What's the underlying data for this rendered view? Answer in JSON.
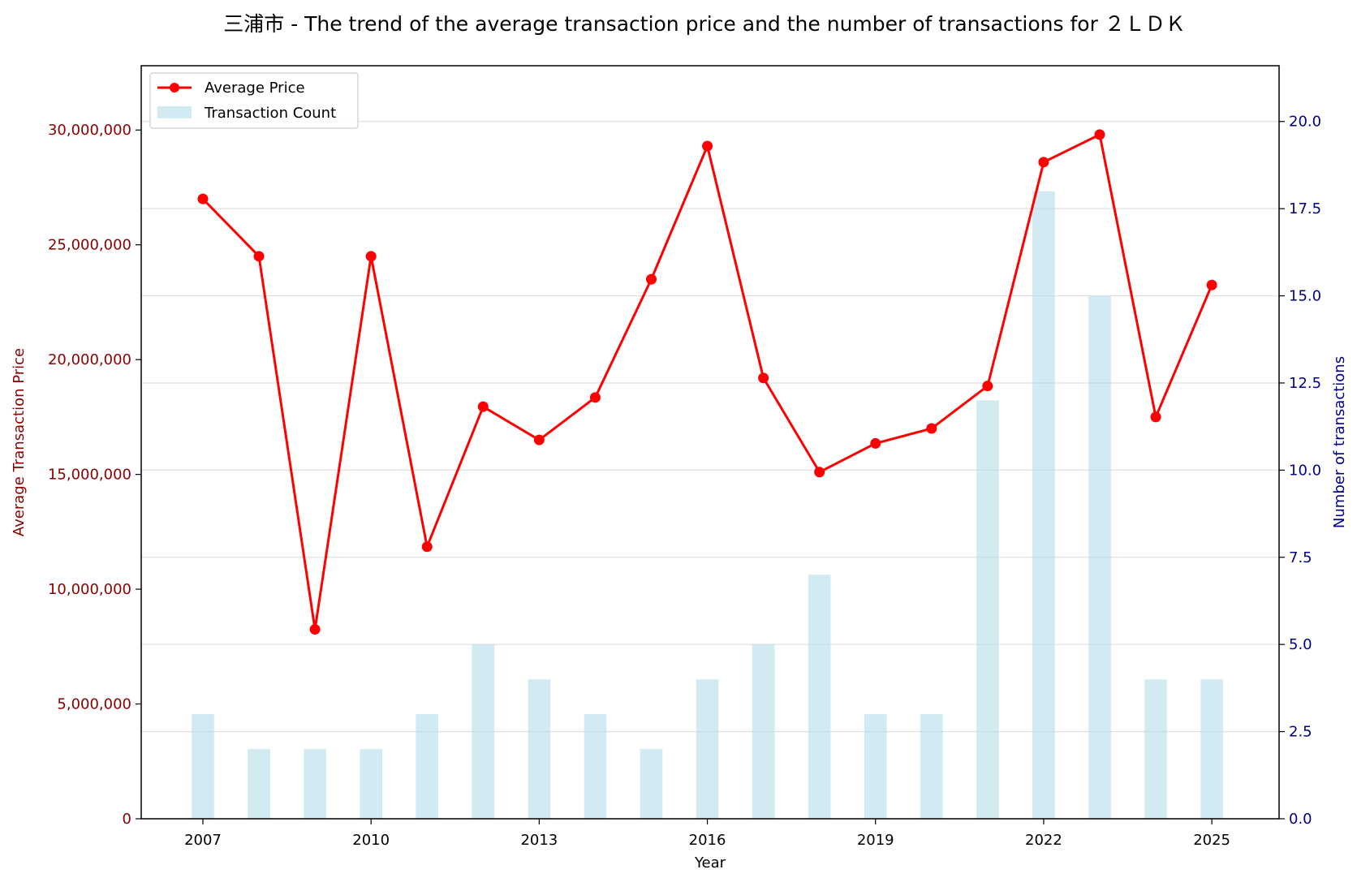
{
  "chart_data": {
    "type": "bar+line",
    "title": "三浦市 - The trend of the average transaction price and the number of transactions for ２ＬＤＫ",
    "xlabel": "Year",
    "ylabel_left": "Average Transaction Price",
    "ylabel_right": "Number of transactions",
    "x": [
      2007,
      2008,
      2009,
      2010,
      2011,
      2012,
      2013,
      2014,
      2015,
      2016,
      2017,
      2018,
      2019,
      2020,
      2021,
      2022,
      2023,
      2024,
      2025
    ],
    "x_ticks": [
      "2007",
      "2010",
      "2013",
      "2016",
      "2019",
      "2022",
      "2025"
    ],
    "xlim": [
      2005.9,
      2026.2
    ],
    "y_left_ticks": [
      "0",
      "5,000,000",
      "10,000,000",
      "15,000,000",
      "20,000,000",
      "25,000,000",
      "30,000,000"
    ],
    "y_left_tick_values": [
      0,
      5000000,
      10000000,
      15000000,
      20000000,
      25000000,
      30000000
    ],
    "ylim_left": [
      0,
      32800000
    ],
    "y_right_ticks": [
      "0.0",
      "2.5",
      "5.0",
      "7.5",
      "10.0",
      "12.5",
      "15.0",
      "17.5",
      "20.0"
    ],
    "y_right_tick_values": [
      0,
      2.5,
      5,
      7.5,
      10,
      12.5,
      15,
      17.5,
      20
    ],
    "ylim_right": [
      0,
      21.6
    ],
    "grid": true,
    "legend_position": "top-left",
    "series": [
      {
        "name": "Average Price",
        "type": "line",
        "axis": "left",
        "color": "#ff0000",
        "values": [
          27000000,
          24500000,
          8250000,
          24500000,
          11850000,
          17950000,
          16500000,
          18350000,
          23500000,
          29300000,
          19200000,
          15100000,
          16350000,
          17000000,
          18850000,
          28600000,
          29800000,
          17500000,
          23250000
        ]
      },
      {
        "name": "Transaction Count",
        "type": "bar",
        "axis": "right",
        "color": "#add8e6",
        "values": [
          3,
          2,
          2,
          2,
          3,
          5,
          4,
          3,
          2,
          4,
          5,
          7,
          3,
          3,
          12,
          18,
          15,
          4,
          4
        ]
      }
    ]
  }
}
